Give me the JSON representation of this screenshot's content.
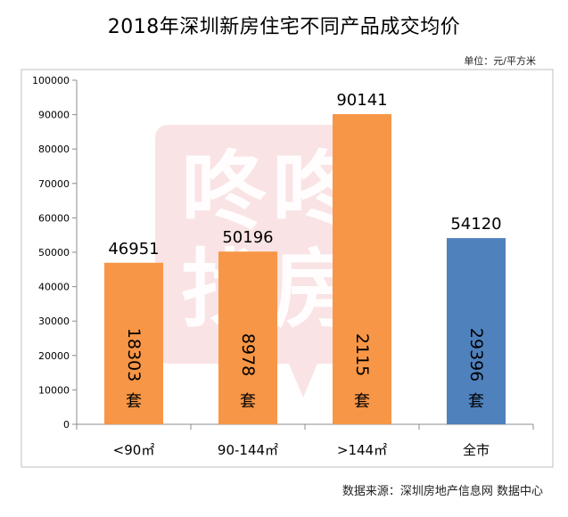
{
  "title": "2018年深圳新房住宅不同产品成交均价",
  "unit_note": "单位：元/平方米",
  "source_note": "数据来源：深圳房地产信息网 数据中心",
  "watermark": [
    "咚咚",
    "找房"
  ],
  "chart_data": {
    "type": "bar",
    "categories": [
      "<90㎡",
      "90-144㎡",
      ">144㎡",
      "全市"
    ],
    "values": [
      46951,
      50196,
      90141,
      54120
    ],
    "volumes": [
      "18303",
      "8978",
      "2115",
      "29396"
    ],
    "volume_unit": "套",
    "bar_colors": [
      "#f79646",
      "#f79646",
      "#f79646",
      "#4f81bd"
    ],
    "ylim": [
      0,
      100000
    ],
    "yticks": [
      "0",
      "10000",
      "20000",
      "30000",
      "40000",
      "50000",
      "60000",
      "70000",
      "80000",
      "90000",
      "100000"
    ],
    "grid": false,
    "legend": "none"
  }
}
